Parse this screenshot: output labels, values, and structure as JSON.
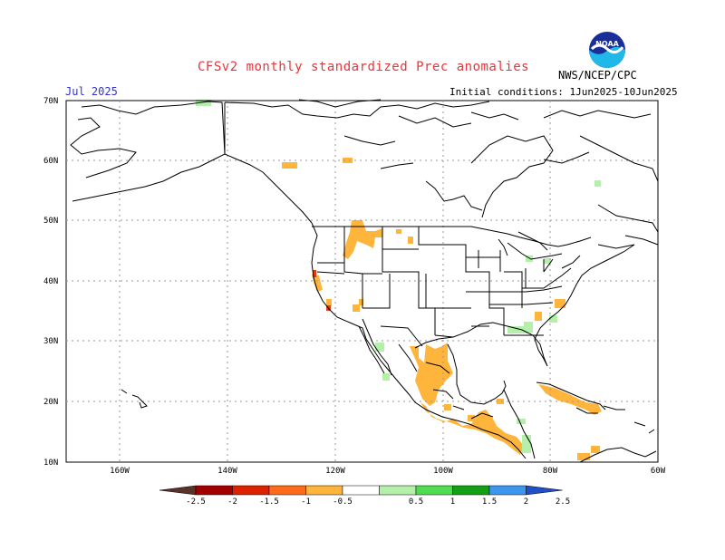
{
  "header": {
    "title": "CFSv2 monthly standardized Prec anomalies",
    "month": "Jul 2025",
    "initial_conditions": "Initial conditions: 1Jun2025-10Jun2025",
    "agency": "NWS/NCEP/CPC",
    "logo_text": "NOAA"
  },
  "axes": {
    "lat_labels": [
      "70N",
      "60N",
      "50N",
      "40N",
      "30N",
      "20N",
      "10N"
    ],
    "lon_labels": [
      "160W",
      "140W",
      "120W",
      "100W",
      "80W",
      "60W"
    ]
  },
  "legend": {
    "labels": [
      "-2.5",
      "-2",
      "-1.5",
      "-1",
      "-0.5",
      "0.5",
      "1",
      "1.5",
      "2",
      "2.5"
    ],
    "colors": [
      "#5a3228",
      "#a00000",
      "#dd2200",
      "#ff6a1a",
      "#ffb43c",
      "#ffffff",
      "#b4f0aa",
      "#50dc50",
      "#14a014",
      "#3c96f0",
      "#2050c8"
    ]
  },
  "colors": {
    "dry": "#ffb43c",
    "very_dry": "#dd3c14",
    "wet": "#b4f0aa",
    "lines": "#000000"
  }
}
